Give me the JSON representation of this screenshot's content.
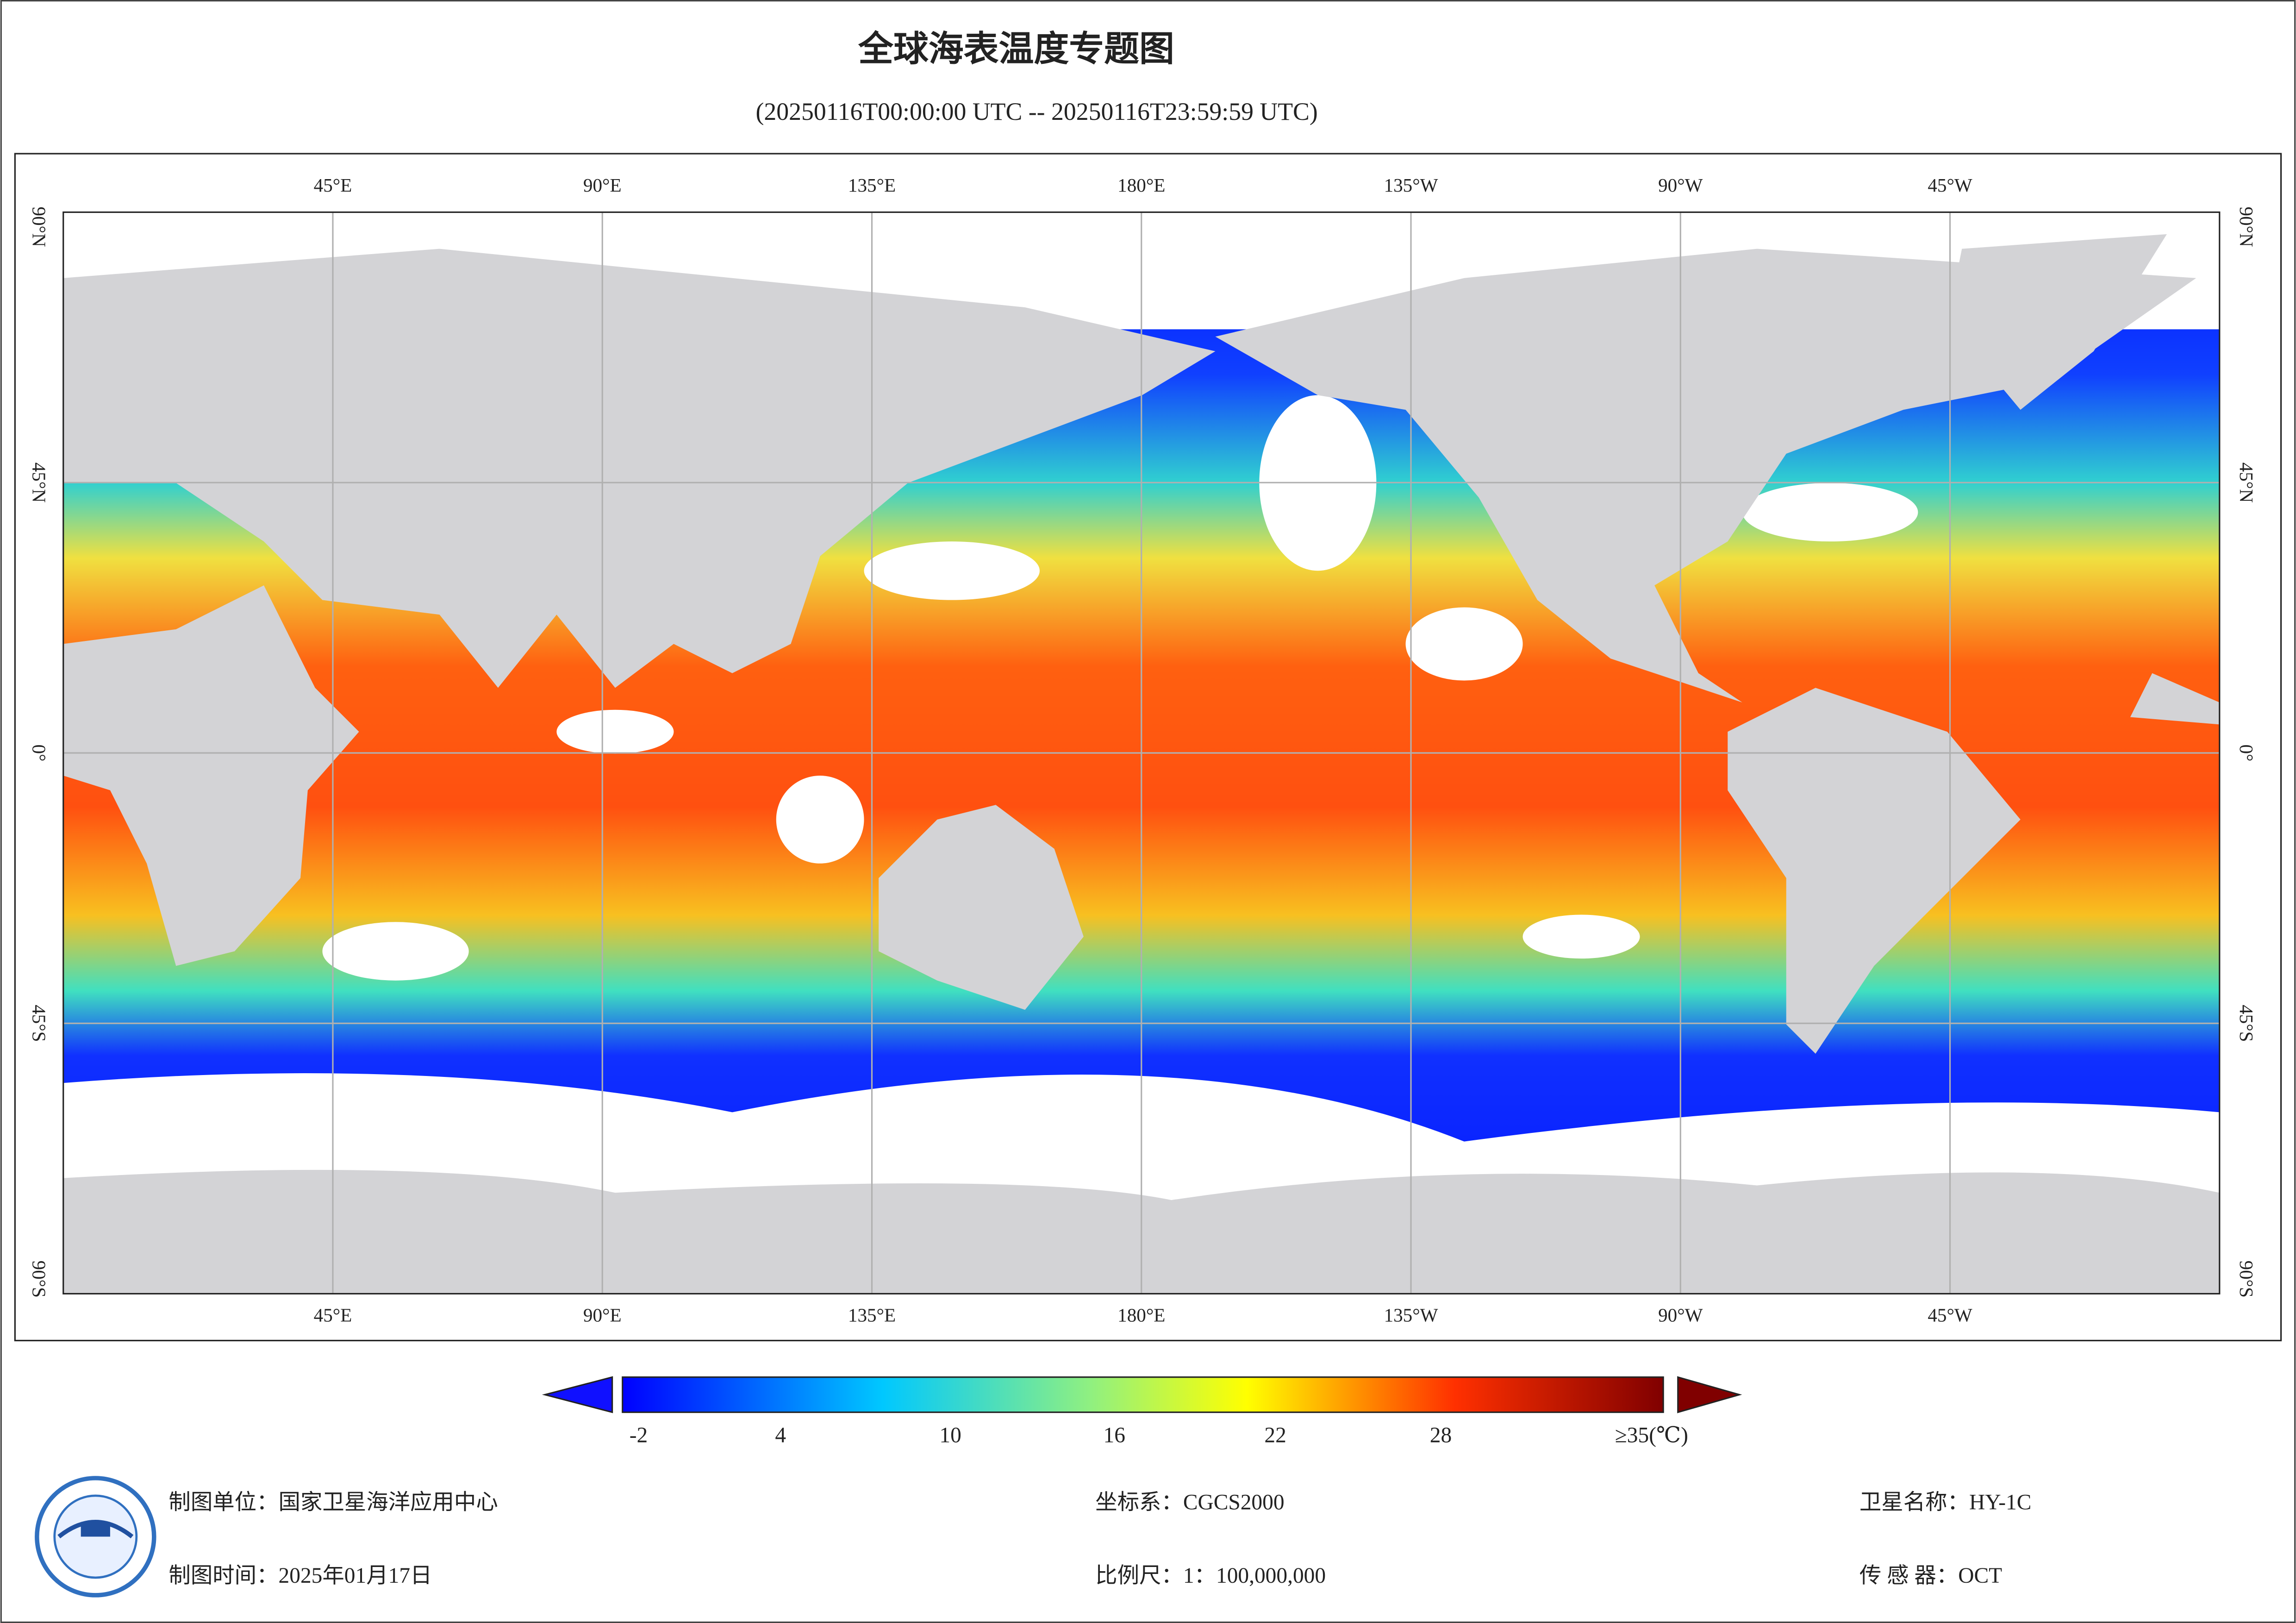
{
  "header": {
    "title": "全球海表温度专题图",
    "time_range": "(20250116T00:00:00 UTC -- 20250116T23:59:59 UTC)"
  },
  "map": {
    "longitude_labels": [
      "45°E",
      "90°E",
      "135°E",
      "180°E",
      "135°W",
      "90°W",
      "45°W"
    ],
    "latitude_labels": [
      "90°N",
      "45°N",
      "0°",
      "45°S",
      "90°S"
    ]
  },
  "legend": {
    "tick_labels": [
      "-2",
      "4",
      "10",
      "16",
      "22",
      "28",
      "≥35(℃)"
    ]
  },
  "footer": {
    "producer": "制图单位：国家卫星海洋应用中心",
    "date": "制图时间：2025年01月17日",
    "crs": "坐标系：CGCS2000",
    "scale": "比例尺：1：100,000,000",
    "satellite": "卫星名称：HY-1C",
    "sensor": "传 感 器：OCT"
  }
}
